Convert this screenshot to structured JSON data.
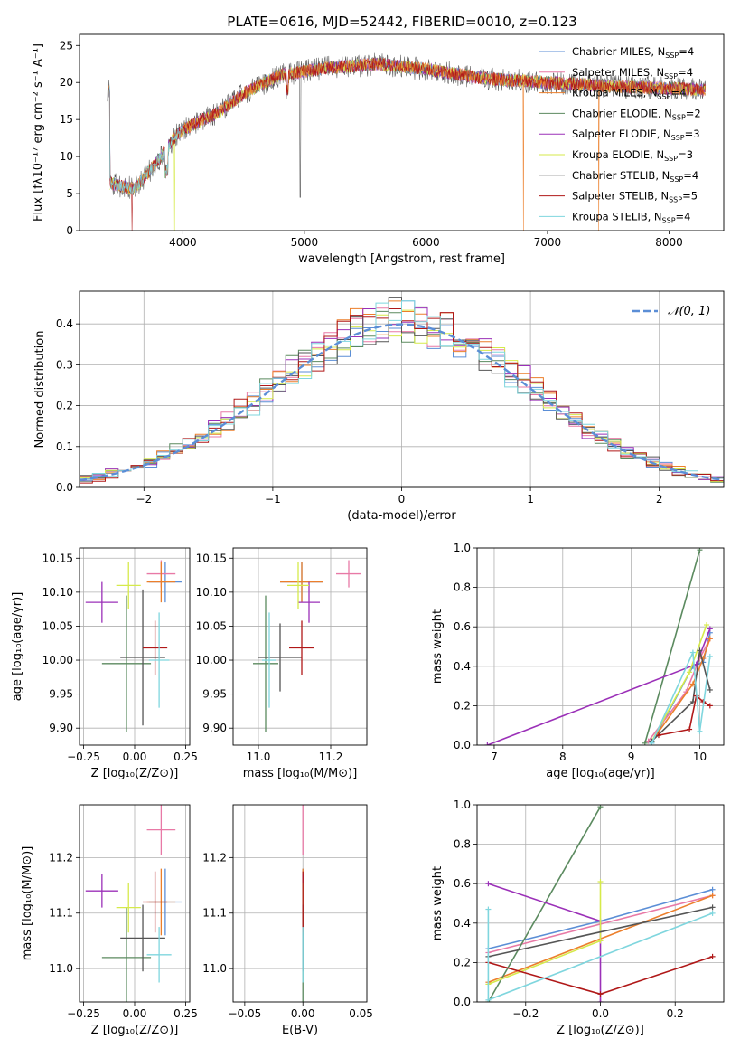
{
  "figure_title": "PLATE=0616, MJD=52442, FIBERID=0010, z=0.123",
  "colors": {
    "Chabrier MILES": "#5b8ed6",
    "Salpeter MILES": "#e879a6",
    "Kroupa MILES": "#ec7f2b",
    "Chabrier ELODIE": "#5b8a5f",
    "Salpeter ELODIE": "#9b30b8",
    "Kroupa ELODIE": "#d6ea4a",
    "Chabrier STELIB": "#555555",
    "Salpeter STELIB": "#b01818",
    "Kroupa STELIB": "#7fd6de",
    "normal_curve": "#5b8ed6",
    "grid": "#b0b0b0"
  },
  "chart_data": [
    {
      "id": "spectrum",
      "type": "line",
      "xlabel": "wavelength [Angstrom, rest frame]",
      "ylabel": "Flux [fλ10⁻¹⁷ erg cm⁻² s⁻¹ A⁻¹]",
      "xlim": [
        3150,
        8450
      ],
      "ylim": [
        0,
        26.5
      ],
      "xticks": [
        4000,
        5000,
        6000,
        7000,
        8000
      ],
      "yticks": [
        0,
        5,
        10,
        15,
        20,
        25
      ],
      "grid": false,
      "legend_position": "top-right",
      "x_range_data": [
        3380,
        8300
      ],
      "continuum_points": [
        [
          3400,
          6.4
        ],
        [
          3600,
          5.6
        ],
        [
          3800,
          9.5
        ],
        [
          3950,
          13.0
        ],
        [
          4100,
          14.5
        ],
        [
          4300,
          16.0
        ],
        [
          4500,
          18.5
        ],
        [
          4800,
          21.0
        ],
        [
          5200,
          22.0
        ],
        [
          5600,
          22.5
        ],
        [
          6000,
          21.8
        ],
        [
          6500,
          20.5
        ],
        [
          7000,
          20.0
        ],
        [
          7500,
          19.5
        ],
        [
          8000,
          19.2
        ],
        [
          8300,
          19.0
        ]
      ],
      "series": [
        {
          "name": "Chabrier MILES",
          "nssp": "4"
        },
        {
          "name": "Salpeter MILES",
          "nssp": "4"
        },
        {
          "name": "Kroupa MILES",
          "nssp": "4"
        },
        {
          "name": "Chabrier ELODIE",
          "nssp": "2"
        },
        {
          "name": "Salpeter ELODIE",
          "nssp": "3"
        },
        {
          "name": "Kroupa ELODIE",
          "nssp": "3"
        },
        {
          "name": "Chabrier STELIB",
          "nssp": "4"
        },
        {
          "name": "Salpeter STELIB",
          "nssp": "5"
        },
        {
          "name": "Kroupa STELIB",
          "nssp": "4"
        }
      ]
    },
    {
      "id": "residuals",
      "type": "histogram",
      "xlabel": "(data-model)/error",
      "ylabel": "Normed distribution",
      "xlim": [
        -2.5,
        2.5
      ],
      "ylim": [
        0,
        0.48
      ],
      "xticks": [
        -2,
        -1,
        0,
        1,
        2
      ],
      "yticks": [
        0.0,
        0.1,
        0.2,
        0.3,
        0.4
      ],
      "grid": true,
      "legend_position": "top-right",
      "legend_label": "𝒩(0, 1)",
      "bin_width": 0.1,
      "bins_from": -2.6
    },
    {
      "id": "age_vs_Z",
      "type": "errorbar",
      "xlabel": "Z [log₁₀(Z/Z⊙)]",
      "ylabel": "age  [log₁₀(age/yr)]",
      "xlim": [
        -0.27,
        0.27
      ],
      "ylim": [
        9.875,
        10.165
      ],
      "xticks": [
        -0.25,
        0.0,
        0.25
      ],
      "yticks": [
        9.9,
        9.95,
        10.0,
        10.05,
        10.1,
        10.15
      ],
      "grid": true,
      "points": [
        {
          "x": 0.15,
          "xerr": 0.08,
          "y": 10.115,
          "yerr": 0.03
        },
        {
          "x": 0.13,
          "xerr": 0.07,
          "y": 10.127,
          "yerr": 0.02
        },
        {
          "x": 0.13,
          "xerr": 0.07,
          "y": 10.115,
          "yerr": 0.03
        },
        {
          "x": -0.04,
          "xerr": 0.12,
          "y": 9.995,
          "yerr": 0.1
        },
        {
          "x": -0.16,
          "xerr": 0.08,
          "y": 10.085,
          "yerr": 0.03
        },
        {
          "x": -0.03,
          "xerr": 0.06,
          "y": 10.11,
          "yerr": 0.035
        },
        {
          "x": 0.04,
          "xerr": 0.11,
          "y": 10.004,
          "yerr": 0.1
        },
        {
          "x": 0.1,
          "xerr": 0.06,
          "y": 10.018,
          "yerr": 0.04
        },
        {
          "x": 0.12,
          "xerr": 0.05,
          "y": 10.0,
          "yerr": 0.07
        }
      ]
    },
    {
      "id": "age_vs_mass",
      "type": "errorbar",
      "xlabel": "mass [log₁₀(M/M⊙)]",
      "ylabel": "",
      "xlim": [
        10.93,
        11.3
      ],
      "ylim": [
        9.875,
        10.165
      ],
      "xticks": [
        11.0,
        11.2
      ],
      "yticks": [
        9.9,
        9.95,
        10.0,
        10.05,
        10.1,
        10.15
      ],
      "grid": true,
      "points": [
        {
          "x": 11.12,
          "xerr": 0.06,
          "y": 10.115,
          "yerr": 0.03
        },
        {
          "x": 11.25,
          "xerr": 0.035,
          "y": 10.127,
          "yerr": 0.02
        },
        {
          "x": 11.12,
          "xerr": 0.06,
          "y": 10.115,
          "yerr": 0.03
        },
        {
          "x": 11.02,
          "xerr": 0.035,
          "y": 9.995,
          "yerr": 0.1
        },
        {
          "x": 11.14,
          "xerr": 0.03,
          "y": 10.085,
          "yerr": 0.03
        },
        {
          "x": 11.11,
          "xerr": 0.03,
          "y": 10.11,
          "yerr": 0.035
        },
        {
          "x": 11.06,
          "xerr": 0.06,
          "y": 10.004,
          "yerr": 0.05
        },
        {
          "x": 11.12,
          "xerr": 0.035,
          "y": 10.018,
          "yerr": 0.04
        },
        {
          "x": 11.03,
          "xerr": 0.02,
          "y": 10.0,
          "yerr": 0.07
        }
      ]
    },
    {
      "id": "weight_vs_age",
      "type": "line",
      "xlabel": "age  [log₁₀(age/yr)]",
      "ylabel": "mass weight",
      "xlim": [
        6.75,
        10.35
      ],
      "ylim": [
        0,
        1.0
      ],
      "xticks": [
        7,
        8,
        9,
        10
      ],
      "yticks": [
        0.0,
        0.2,
        0.4,
        0.6,
        0.8,
        1.0
      ],
      "grid": true,
      "series": [
        {
          "x": [
            9.3,
            9.9,
            10.05,
            10.15
          ],
          "y": [
            0.01,
            0.4,
            0.42,
            0.57
          ]
        },
        {
          "x": [
            9.25,
            9.8,
            10.0,
            10.15
          ],
          "y": [
            0.02,
            0.27,
            0.44,
            0.54
          ]
        },
        {
          "x": [
            9.3,
            9.9,
            10.05,
            10.15
          ],
          "y": [
            0.02,
            0.31,
            0.44,
            0.54
          ]
        },
        {
          "x": [
            9.2,
            10.0
          ],
          "y": [
            0.01,
            0.99
          ]
        },
        {
          "x": [
            6.9,
            9.95,
            10.15
          ],
          "y": [
            0.0,
            0.41,
            0.59
          ]
        },
        {
          "x": [
            9.3,
            9.85,
            10.1
          ],
          "y": [
            0.02,
            0.37,
            0.61
          ]
        },
        {
          "x": [
            9.3,
            9.9,
            10.0,
            10.15
          ],
          "y": [
            0.02,
            0.22,
            0.48,
            0.28
          ]
        },
        {
          "x": [
            9.4,
            9.85,
            9.95,
            10.05,
            10.15
          ],
          "y": [
            0.05,
            0.08,
            0.25,
            0.22,
            0.2
          ]
        },
        {
          "x": [
            9.3,
            9.9,
            10.0,
            10.15
          ],
          "y": [
            0.01,
            0.47,
            0.07,
            0.45
          ]
        }
      ]
    },
    {
      "id": "mass_vs_Z",
      "type": "errorbar",
      "xlabel": "Z [log₁₀(Z/Z⊙)]",
      "ylabel": "mass [log₁₀(M/M⊙)]",
      "xlim": [
        -0.27,
        0.27
      ],
      "ylim": [
        10.94,
        11.295
      ],
      "xticks": [
        -0.25,
        0.0,
        0.25
      ],
      "yticks": [
        11.0,
        11.1,
        11.2
      ],
      "grid": true,
      "points": [
        {
          "x": 0.15,
          "xerr": 0.08,
          "y": 11.12,
          "yerr": 0.06
        },
        {
          "x": 0.13,
          "xerr": 0.07,
          "y": 11.25,
          "yerr": 0.045
        },
        {
          "x": 0.13,
          "xerr": 0.07,
          "y": 11.12,
          "yerr": 0.06
        },
        {
          "x": -0.04,
          "xerr": 0.12,
          "y": 11.02,
          "yerr": 0.09
        },
        {
          "x": -0.16,
          "xerr": 0.08,
          "y": 11.14,
          "yerr": 0.03
        },
        {
          "x": -0.03,
          "xerr": 0.06,
          "y": 11.11,
          "yerr": 0.045
        },
        {
          "x": 0.04,
          "xerr": 0.11,
          "y": 11.055,
          "yerr": 0.06
        },
        {
          "x": 0.1,
          "xerr": 0.06,
          "y": 11.12,
          "yerr": 0.055
        },
        {
          "x": 0.12,
          "xerr": 0.06,
          "y": 11.025,
          "yerr": 0.05
        }
      ]
    },
    {
      "id": "mass_vs_EBV",
      "type": "errorbar",
      "xlabel": "E(B-V)",
      "ylabel": "",
      "xlim": [
        -0.06,
        0.055
      ],
      "ylim": [
        10.94,
        11.295
      ],
      "xticks": [
        -0.05,
        0.0,
        0.05
      ],
      "yticks": [
        11.0,
        11.1,
        11.2
      ],
      "grid": true,
      "points": [
        {
          "x": 0.0,
          "xerr": 0.0,
          "y": 11.12,
          "yerr": 0.06
        },
        {
          "x": 0.0,
          "xerr": 0.0,
          "y": 11.25,
          "yerr": 0.045
        },
        {
          "x": 0.0,
          "xerr": 0.0,
          "y": 11.12,
          "yerr": 0.06
        },
        {
          "x": 0.0,
          "xerr": 0.0,
          "y": 11.02,
          "yerr": 0.09
        },
        {
          "x": 0.0,
          "xerr": 0.0,
          "y": 11.14,
          "yerr": 0.03
        },
        {
          "x": 0.0,
          "xerr": 0.0,
          "y": 11.11,
          "yerr": 0.045
        },
        {
          "x": 0.0,
          "xerr": 0.0,
          "y": 11.055,
          "yerr": 0.06
        },
        {
          "x": 0.0,
          "xerr": 0.0,
          "y": 11.12,
          "yerr": 0.055
        },
        {
          "x": 0.0,
          "xerr": 0.0,
          "y": 11.025,
          "yerr": 0.05
        }
      ]
    },
    {
      "id": "weight_vs_Z",
      "type": "line",
      "xlabel": "Z [log₁₀(Z/Z⊙)]",
      "ylabel": "mass weight",
      "xlim": [
        -0.33,
        0.33
      ],
      "ylim": [
        0,
        1.0
      ],
      "xticks": [
        -0.2,
        0.0,
        0.2
      ],
      "yticks": [
        0.0,
        0.2,
        0.4,
        0.6,
        0.8,
        1.0
      ],
      "grid": true,
      "series": [
        {
          "x": [
            -0.3,
            0.0,
            0.3
          ],
          "y": [
            0.27,
            0.41,
            0.57
          ]
        },
        {
          "x": [
            -0.3,
            0.3
          ],
          "y": [
            0.25,
            0.54
          ]
        },
        {
          "x": [
            -0.3,
            0.3
          ],
          "y": [
            0.1,
            0.54
          ]
        },
        {
          "x": [
            -0.3,
            0.0
          ],
          "y": [
            0.0,
            0.99
          ]
        },
        {
          "x": [
            -0.3,
            0.0,
            0.0
          ],
          "y": [
            0.6,
            0.41,
            0.0
          ]
        },
        {
          "x": [
            -0.3,
            0.0,
            0.0
          ],
          "y": [
            0.09,
            0.31,
            0.61
          ]
        },
        {
          "x": [
            -0.3,
            0.3
          ],
          "y": [
            0.23,
            0.48
          ]
        },
        {
          "x": [
            -0.3,
            0.0,
            0.3
          ],
          "y": [
            0.2,
            0.04,
            0.23
          ]
        },
        {
          "x": [
            -0.3,
            -0.3,
            0.3
          ],
          "y": [
            0.47,
            0.01,
            0.45
          ]
        }
      ]
    }
  ]
}
